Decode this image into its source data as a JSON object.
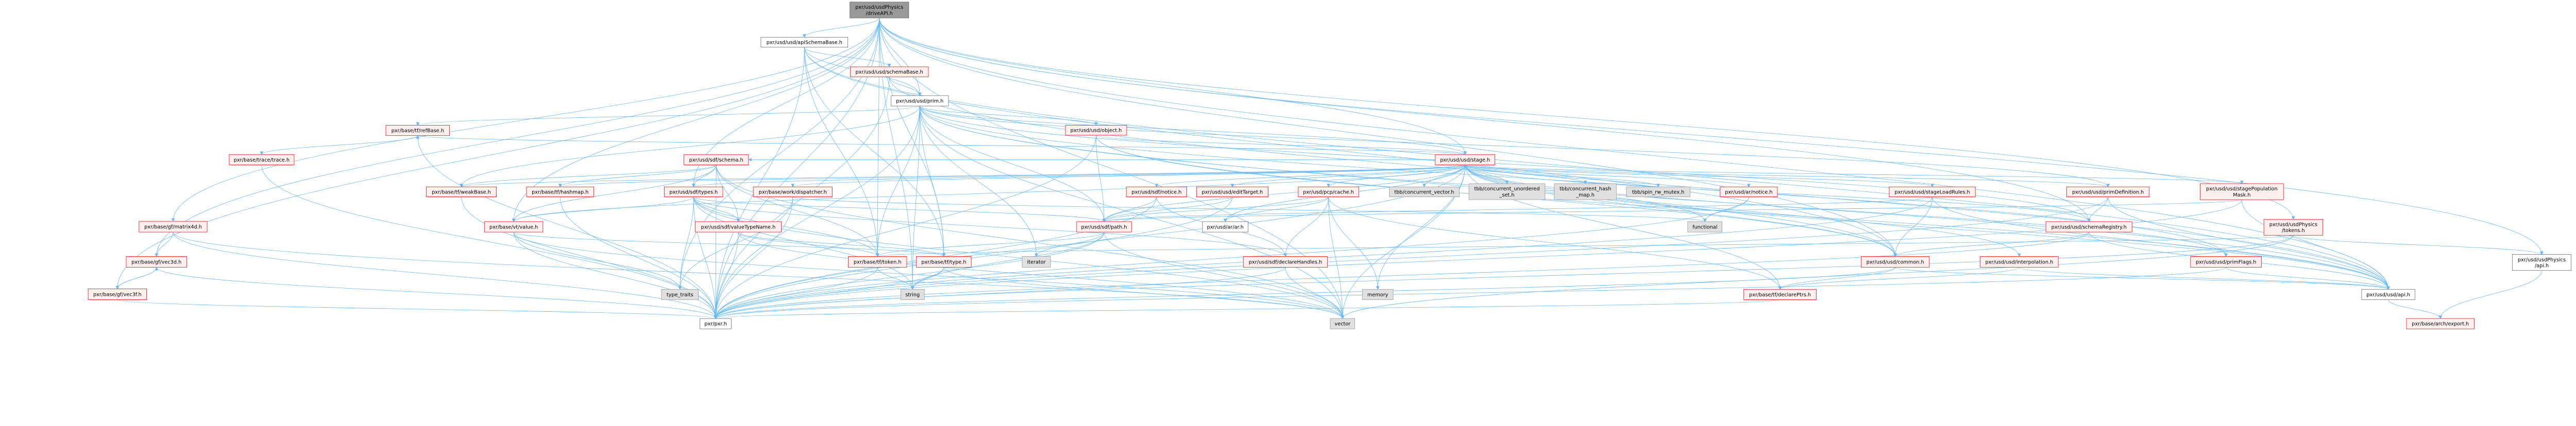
{
  "graph": {
    "edge_color": "#63b8ff",
    "styles": {
      "root": {
        "fill": "#999999",
        "stroke": "#666666"
      },
      "documented": {
        "fill": "#ffffff",
        "stroke": "#666666"
      },
      "truncated": {
        "fill": "#fff0f0",
        "stroke": "#ff0000"
      },
      "system": {
        "fill": "#e0e0e0",
        "stroke": "#999999"
      }
    },
    "nodes": [
      {
        "id": "driveAPI",
        "lines": [
          "pxr/usd/usdPhysics",
          "/driveAPI.h"
        ],
        "style": "root"
      },
      {
        "id": "apiSchemaBase",
        "lines": [
          "pxr/usd/usd/apiSchemaBase.h"
        ],
        "style": "documented"
      },
      {
        "id": "schemaBase",
        "lines": [
          "pxr/usd/usd/schemaBase.h"
        ],
        "style": "truncated"
      },
      {
        "id": "prim",
        "lines": [
          "pxr/usd/usd/prim.h"
        ],
        "style": "documented"
      },
      {
        "id": "refBase",
        "lines": [
          "pxr/base/tf/refBase.h"
        ],
        "style": "truncated"
      },
      {
        "id": "object",
        "lines": [
          "pxr/usd/usd/object.h"
        ],
        "style": "truncated"
      },
      {
        "id": "trace",
        "lines": [
          "pxr/base/trace/trace.h"
        ],
        "style": "truncated"
      },
      {
        "id": "sdfSchema",
        "lines": [
          "pxr/usd/sdf/schema.h"
        ],
        "style": "truncated"
      },
      {
        "id": "stage",
        "lines": [
          "pxr/usd/usd/stage.h"
        ],
        "style": "truncated"
      },
      {
        "id": "weakBase",
        "lines": [
          "pxr/base/tf/weakBase.h"
        ],
        "style": "truncated"
      },
      {
        "id": "hashmap",
        "lines": [
          "pxr/base/tf/hashmap.h"
        ],
        "style": "truncated"
      },
      {
        "id": "sdfTypes",
        "lines": [
          "pxr/usd/sdf/types.h"
        ],
        "style": "truncated"
      },
      {
        "id": "dispatcher",
        "lines": [
          "pxr/base/work/dispatcher.h"
        ],
        "style": "truncated"
      },
      {
        "id": "sdfNotice",
        "lines": [
          "pxr/usd/sdf/notice.h"
        ],
        "style": "truncated"
      },
      {
        "id": "editTarget",
        "lines": [
          "pxr/usd/usd/editTarget.h"
        ],
        "style": "truncated"
      },
      {
        "id": "pcpCache",
        "lines": [
          "pxr/usd/pcp/cache.h"
        ],
        "style": "truncated"
      },
      {
        "id": "tbbVector",
        "lines": [
          "tbb/concurrent_vector.h"
        ],
        "style": "system"
      },
      {
        "id": "tbbSet",
        "lines": [
          "tbb/concurrent_unordered",
          "_set.h"
        ],
        "style": "system"
      },
      {
        "id": "tbbHash",
        "lines": [
          "tbb/concurrent_hash",
          "_map.h"
        ],
        "style": "system"
      },
      {
        "id": "tbbMutex",
        "lines": [
          "tbb/spin_rw_mutex.h"
        ],
        "style": "system"
      },
      {
        "id": "arNotice",
        "lines": [
          "pxr/usd/ar/notice.h"
        ],
        "style": "truncated"
      },
      {
        "id": "stageLoadRules",
        "lines": [
          "pxr/usd/usd/stageLoadRules.h"
        ],
        "style": "truncated"
      },
      {
        "id": "primDefinition",
        "lines": [
          "pxr/usd/usd/primDefinition.h"
        ],
        "style": "truncated"
      },
      {
        "id": "popMask",
        "lines": [
          "pxr/usd/usd/stagePopulation",
          "Mask.h"
        ],
        "style": "truncated"
      },
      {
        "id": "matrix4d",
        "lines": [
          "pxr/base/gf/matrix4d.h"
        ],
        "style": "truncated"
      },
      {
        "id": "vtValue",
        "lines": [
          "pxr/base/vt/value.h"
        ],
        "style": "truncated"
      },
      {
        "id": "valueTypeName",
        "lines": [
          "pxr/usd/sdf/valueTypeName.h"
        ],
        "style": "truncated"
      },
      {
        "id": "sdfPath",
        "lines": [
          "pxr/usd/sdf/path.h"
        ],
        "style": "truncated"
      },
      {
        "id": "ar",
        "lines": [
          "pxr/usd/ar/ar.h"
        ],
        "style": "documented"
      },
      {
        "id": "functional",
        "lines": [
          "functional"
        ],
        "style": "system"
      },
      {
        "id": "schemaRegistry",
        "lines": [
          "pxr/usd/usd/schemaRegistry.h"
        ],
        "style": "truncated"
      },
      {
        "id": "physTokens",
        "lines": [
          "pxr/usd/usdPhysics",
          "/tokens.h"
        ],
        "style": "truncated"
      },
      {
        "id": "vec3d",
        "lines": [
          "pxr/base/gf/vec3d.h"
        ],
        "style": "truncated"
      },
      {
        "id": "token",
        "lines": [
          "pxr/base/tf/token.h"
        ],
        "style": "truncated"
      },
      {
        "id": "tfType",
        "lines": [
          "pxr/base/tf/type.h"
        ],
        "style": "truncated"
      },
      {
        "id": "iterator",
        "lines": [
          "iterator"
        ],
        "style": "system"
      },
      {
        "id": "declareHandles",
        "lines": [
          "pxr/usd/sdf/declareHandles.h"
        ],
        "style": "truncated"
      },
      {
        "id": "common",
        "lines": [
          "pxr/usd/usd/common.h"
        ],
        "style": "truncated"
      },
      {
        "id": "interpolation",
        "lines": [
          "pxr/usd/usd/interpolation.h"
        ],
        "style": "truncated"
      },
      {
        "id": "primFlags",
        "lines": [
          "pxr/usd/usd/primFlags.h"
        ],
        "style": "truncated"
      },
      {
        "id": "physApi",
        "lines": [
          "pxr/usd/usdPhysics",
          "/api.h"
        ],
        "style": "documented"
      },
      {
        "id": "vec3f",
        "lines": [
          "pxr/base/gf/vec3f.h"
        ],
        "style": "truncated"
      },
      {
        "id": "typeTraits",
        "lines": [
          "type_traits"
        ],
        "style": "system"
      },
      {
        "id": "string",
        "lines": [
          "string"
        ],
        "style": "system"
      },
      {
        "id": "memory",
        "lines": [
          "memory"
        ],
        "style": "system"
      },
      {
        "id": "declarePtrs",
        "lines": [
          "pxr/base/tf/declarePtrs.h"
        ],
        "style": "truncated"
      },
      {
        "id": "usdApi",
        "lines": [
          "pxr/usd/usd/api.h"
        ],
        "style": "documented"
      },
      {
        "id": "pxr",
        "lines": [
          "pxr/pxr.h"
        ],
        "style": "documented"
      },
      {
        "id": "vector",
        "lines": [
          "vector"
        ],
        "style": "system"
      },
      {
        "id": "export",
        "lines": [
          "pxr/base/arch/export.h"
        ],
        "style": "truncated"
      }
    ],
    "edges": [
      [
        "driveAPI",
        "apiSchemaBase"
      ],
      [
        "driveAPI",
        "prim"
      ],
      [
        "driveAPI",
        "stage"
      ],
      [
        "driveAPI",
        "physTokens"
      ],
      [
        "driveAPI",
        "physApi"
      ],
      [
        "driveAPI",
        "vtValue"
      ],
      [
        "driveAPI",
        "sdfTypes"
      ],
      [
        "driveAPI",
        "token"
      ],
      [
        "driveAPI",
        "tfType"
      ],
      [
        "driveAPI",
        "vec3f"
      ],
      [
        "driveAPI",
        "matrix4d"
      ],
      [
        "driveAPI",
        "vec3d"
      ],
      [
        "driveAPI",
        "typeTraits"
      ],
      [
        "driveAPI",
        "pxr"
      ],
      [
        "driveAPI",
        "vector"
      ],
      [
        "driveAPI",
        "string"
      ],
      [
        "driveAPI",
        "schemaRegistry"
      ],
      [
        "driveAPI",
        "usdApi"
      ],
      [
        "driveAPI",
        "common"
      ],
      [
        "apiSchemaBase",
        "schemaBase"
      ],
      [
        "apiSchemaBase",
        "prim"
      ],
      [
        "apiSchemaBase",
        "usdApi"
      ],
      [
        "apiSchemaBase",
        "pxr"
      ],
      [
        "apiSchemaBase",
        "token"
      ],
      [
        "apiSchemaBase",
        "tfType"
      ],
      [
        "apiSchemaBase",
        "common"
      ],
      [
        "schemaBase",
        "prim"
      ],
      [
        "schemaBase",
        "usdApi"
      ],
      [
        "schemaBase",
        "pxr"
      ],
      [
        "prim",
        "object"
      ],
      [
        "prim",
        "sdfPath"
      ],
      [
        "prim",
        "token"
      ],
      [
        "prim",
        "tfType"
      ],
      [
        "prim",
        "iterator"
      ],
      [
        "prim",
        "common"
      ],
      [
        "prim",
        "primFlags"
      ],
      [
        "prim",
        "schemaRegistry"
      ],
      [
        "prim",
        "primDefinition"
      ],
      [
        "prim",
        "usdApi"
      ],
      [
        "prim",
        "pxr"
      ],
      [
        "prim",
        "vector"
      ],
      [
        "prim",
        "string"
      ],
      [
        "prim",
        "refBase"
      ],
      [
        "prim",
        "weakBase"
      ],
      [
        "prim",
        "stage"
      ],
      [
        "object",
        "sdfPath"
      ],
      [
        "object",
        "usdApi"
      ],
      [
        "object",
        "common"
      ],
      [
        "object",
        "pxr"
      ],
      [
        "object",
        "stage"
      ],
      [
        "refBase",
        "pxr"
      ],
      [
        "refBase",
        "trace"
      ],
      [
        "trace",
        "pxr"
      ],
      [
        "weakBase",
        "pxr"
      ],
      [
        "hashmap",
        "pxr"
      ],
      [
        "stage",
        "pcpCache"
      ],
      [
        "stage",
        "tbbVector"
      ],
      [
        "stage",
        "tbbSet"
      ],
      [
        "stage",
        "tbbHash"
      ],
      [
        "stage",
        "tbbMutex"
      ],
      [
        "stage",
        "arNotice"
      ],
      [
        "stage",
        "functional"
      ],
      [
        "stage",
        "memory"
      ],
      [
        "stage",
        "vector"
      ],
      [
        "stage",
        "stageLoadRules"
      ],
      [
        "stage",
        "primDefinition"
      ],
      [
        "stage",
        "popMask"
      ],
      [
        "stage",
        "common"
      ],
      [
        "stage",
        "interpolation"
      ],
      [
        "stage",
        "declarePtrs"
      ],
      [
        "stage",
        "schemaRegistry"
      ],
      [
        "stage",
        "weakBase"
      ],
      [
        "stage",
        "hashmap"
      ],
      [
        "stage",
        "refBase"
      ],
      [
        "stage",
        "sdfNotice"
      ],
      [
        "stage",
        "editTarget"
      ],
      [
        "stage",
        "ar"
      ],
      [
        "stage",
        "sdfPath"
      ],
      [
        "stage",
        "vtValue"
      ],
      [
        "stage",
        "sdfTypes"
      ],
      [
        "stage",
        "usdApi"
      ],
      [
        "stage",
        "pxr"
      ],
      [
        "stage",
        "primFlags"
      ],
      [
        "stage",
        "dispatcher"
      ],
      [
        "stage",
        "sdfSchema"
      ],
      [
        "sdfSchema",
        "sdfTypes"
      ],
      [
        "sdfSchema",
        "valueTypeName"
      ],
      [
        "sdfSchema",
        "vtValue"
      ],
      [
        "sdfSchema",
        "weakBase"
      ],
      [
        "sdfSchema",
        "hashmap"
      ],
      [
        "sdfSchema",
        "pxr"
      ],
      [
        "sdfSchema",
        "token"
      ],
      [
        "sdfSchema",
        "vector"
      ],
      [
        "sdfTypes",
        "vtValue"
      ],
      [
        "sdfTypes",
        "valueTypeName"
      ],
      [
        "sdfTypes",
        "pxr"
      ],
      [
        "sdfTypes",
        "token"
      ],
      [
        "sdfTypes",
        "typeTraits"
      ],
      [
        "sdfTypes",
        "vector"
      ],
      [
        "sdfTypes",
        "string"
      ],
      [
        "sdfTypes",
        "declareHandles"
      ],
      [
        "sdfTypes",
        "sdfPath"
      ],
      [
        "dispatcher",
        "pxr"
      ],
      [
        "dispatcher",
        "typeTraits"
      ],
      [
        "dispatcher",
        "functional"
      ],
      [
        "vtValue",
        "pxr"
      ],
      [
        "vtValue",
        "typeTraits"
      ],
      [
        "vtValue",
        "tfType"
      ],
      [
        "vtValue",
        "vector"
      ],
      [
        "valueTypeName",
        "pxr"
      ],
      [
        "valueTypeName",
        "token"
      ],
      [
        "valueTypeName",
        "tfType"
      ],
      [
        "valueTypeName",
        "vector"
      ],
      [
        "sdfNotice",
        "sdfPath"
      ],
      [
        "sdfNotice",
        "declareHandles"
      ],
      [
        "sdfNotice",
        "pxr"
      ],
      [
        "editTarget",
        "sdfPath"
      ],
      [
        "editTarget",
        "pxr"
      ],
      [
        "pcpCache",
        "sdfPath"
      ],
      [
        "pcpCache",
        "ar"
      ],
      [
        "pcpCache",
        "declareHandles"
      ],
      [
        "pcpCache",
        "memory"
      ],
      [
        "pcpCache",
        "vector"
      ],
      [
        "pcpCache",
        "declarePtrs"
      ],
      [
        "arNotice",
        "functional"
      ],
      [
        "arNotice",
        "pxr"
      ],
      [
        "sdfPath",
        "token"
      ],
      [
        "sdfPath",
        "iterator"
      ],
      [
        "sdfPath",
        "string"
      ],
      [
        "sdfPath",
        "vector"
      ],
      [
        "sdfPath",
        "pxr"
      ],
      [
        "declareHandles",
        "pxr"
      ],
      [
        "declareHandles",
        "vector"
      ],
      [
        "declarePtrs",
        "pxr"
      ],
      [
        "token",
        "string"
      ],
      [
        "token",
        "pxr"
      ],
      [
        "tfType",
        "string"
      ],
      [
        "tfType",
        "pxr"
      ],
      [
        "tfType",
        "vector"
      ],
      [
        "matrix4d",
        "vec3d"
      ],
      [
        "matrix4d",
        "pxr"
      ],
      [
        "matrix4d",
        "vector"
      ],
      [
        "vec3d",
        "vec3f"
      ],
      [
        "vec3f",
        "vec3d"
      ],
      [
        "vec3d",
        "pxr"
      ],
      [
        "vec3f",
        "pxr"
      ],
      [
        "stageLoadRules",
        "common"
      ],
      [
        "stageLoadRules",
        "usdApi"
      ],
      [
        "stageLoadRules",
        "sdfPath"
      ],
      [
        "stageLoadRules",
        "pxr"
      ],
      [
        "primDefinition",
        "schemaRegistry"
      ],
      [
        "primDefinition",
        "usdApi"
      ],
      [
        "primDefinition",
        "pxr"
      ],
      [
        "popMask",
        "usdApi"
      ],
      [
        "popMask",
        "sdfPath"
      ],
      [
        "popMask",
        "pxr"
      ],
      [
        "schemaRegistry",
        "common"
      ],
      [
        "schemaRegistry",
        "usdApi"
      ],
      [
        "schemaRegistry",
        "pxr"
      ],
      [
        "common",
        "declarePtrs"
      ],
      [
        "common",
        "usdApi"
      ],
      [
        "common",
        "pxr"
      ],
      [
        "interpolation",
        "declarePtrs"
      ],
      [
        "interpolation",
        "usdApi"
      ],
      [
        "primFlags",
        "usdApi"
      ],
      [
        "primFlags",
        "pxr"
      ],
      [
        "physTokens",
        "physApi"
      ],
      [
        "physTokens",
        "token"
      ],
      [
        "physTokens",
        "pxr"
      ],
      [
        "physTokens",
        "vector"
      ],
      [
        "physApi",
        "export"
      ],
      [
        "usdApi",
        "export"
      ]
    ]
  }
}
